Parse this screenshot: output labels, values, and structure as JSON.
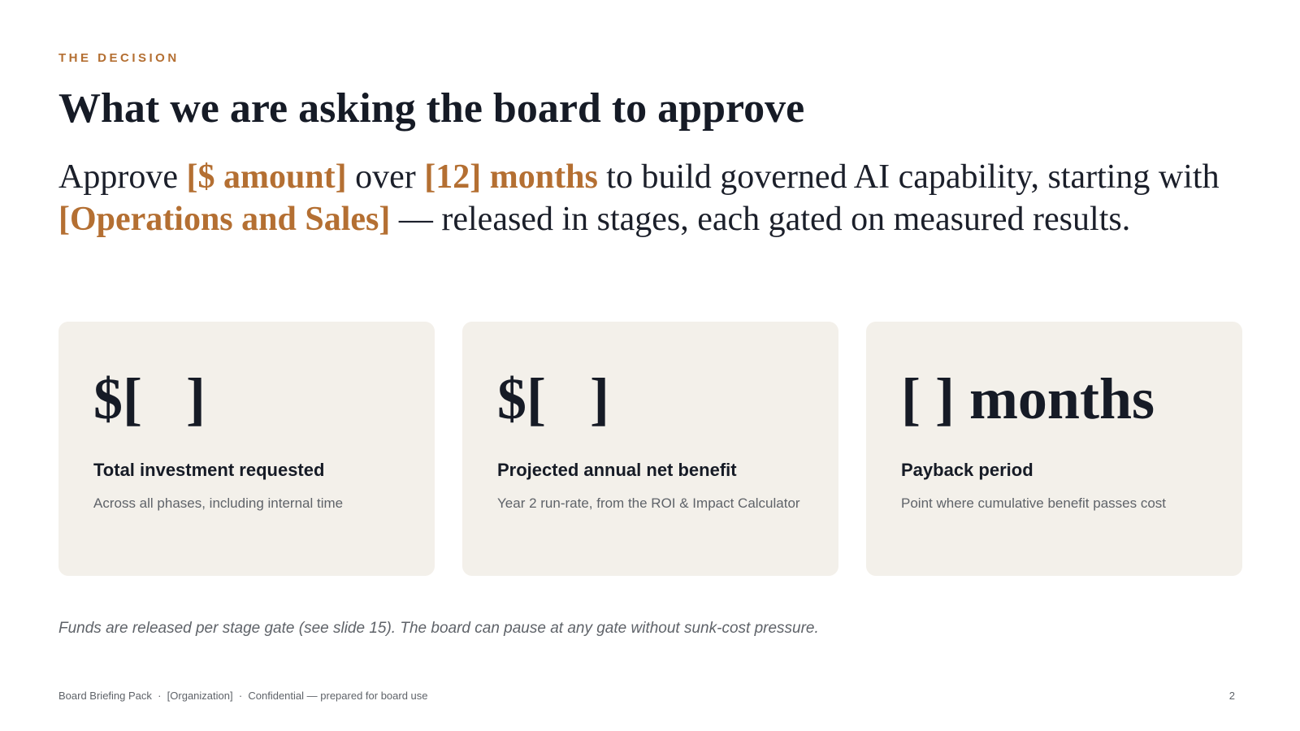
{
  "eyebrow": "THE DECISION",
  "title": "What we are asking the board to approve",
  "lead": [
    {
      "text": "Approve ",
      "highlight": false
    },
    {
      "text": "[$ amount]",
      "highlight": true
    },
    {
      "text": " over ",
      "highlight": false
    },
    {
      "text": "[12] months",
      "highlight": true
    },
    {
      "text": " to build governed AI capability, starting with ",
      "highlight": false
    },
    {
      "text": "[Operations and Sales]",
      "highlight": true
    },
    {
      "text": " — released in stages, each gated on measured results.",
      "highlight": false
    }
  ],
  "cards": [
    {
      "value": "$[   ]",
      "label": "Total investment requested",
      "detail": "Across all phases, including internal time"
    },
    {
      "value": "$[   ]",
      "label": "Projected annual net benefit",
      "detail": "Year 2 run-rate, from the ROI & Impact Calculator"
    },
    {
      "value": "[ ] months",
      "label": "Payback period",
      "detail": "Point where cumulative benefit passes cost"
    }
  ],
  "note": "Funds are released per stage gate (see slide 15). The board can pause at any gate without sunk-cost pressure.",
  "footer": {
    "left": "Board Briefing Pack  ·  [Organization]  ·  Confidential — prepared for board use",
    "page": "2"
  }
}
